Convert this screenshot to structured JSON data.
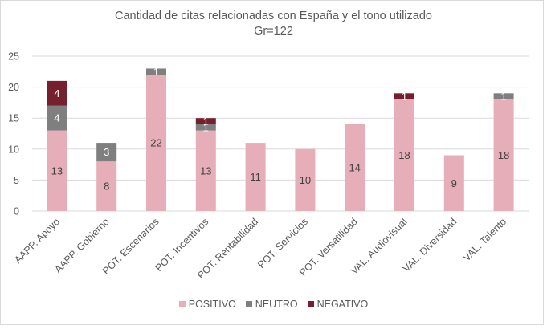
{
  "chart_data": {
    "type": "bar",
    "stacked": true,
    "title": "Cantidad de citas relacionadas con España y el tono utilizado",
    "subtitle": "Gr=122",
    "xlabel": "",
    "ylabel": "",
    "ylim": [
      0,
      25
    ],
    "yticks": [
      0,
      5,
      10,
      15,
      20,
      25
    ],
    "grid": true,
    "legend_position": "bottom",
    "categories": [
      "AAPP. Apoyo",
      "AAPP. Gobierno",
      "POT. Escenarios",
      "POT. Incentivos",
      "POT. Rentabilidad",
      "POT. Servicios",
      "POT. Versatilidad",
      "VAL. Audiovisual",
      "VAL. Diversidad",
      "VAL. Talento"
    ],
    "series": [
      {
        "name": "POSITIVO",
        "color": "#e5aeb8",
        "label_color": "#404040",
        "values": [
          13,
          8,
          22,
          13,
          11,
          10,
          14,
          18,
          9,
          18
        ]
      },
      {
        "name": "NEUTRO",
        "color": "#7f7f7f",
        "label_color": "#ffffff",
        "values": [
          4,
          3,
          1,
          1,
          0,
          0,
          0,
          0,
          0,
          1
        ]
      },
      {
        "name": "NEGATIVO",
        "color": "#76202f",
        "label_color": "#ffffff",
        "values": [
          4,
          0,
          0,
          1,
          0,
          0,
          0,
          1,
          0,
          0
        ]
      }
    ]
  }
}
